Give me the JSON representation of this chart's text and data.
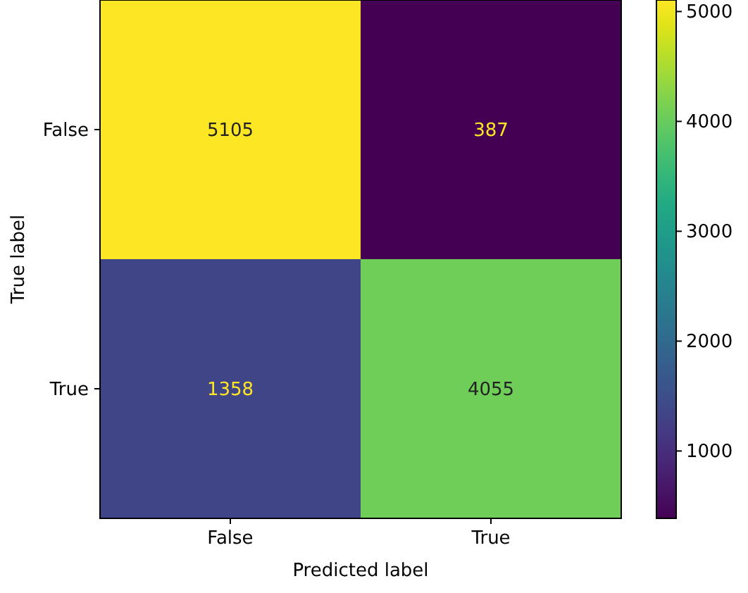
{
  "chart_data": {
    "type": "heatmap",
    "xlabel": "Predicted label",
    "ylabel": "True label",
    "categories": [
      "False",
      "True"
    ],
    "y_categories": [
      "False",
      "True"
    ],
    "cells": [
      [
        5105,
        387
      ],
      [
        1358,
        4055
      ]
    ],
    "data_labels": true,
    "clim": [
      387,
      5105
    ],
    "cticks": [
      1000,
      2000,
      3000,
      4000,
      5000
    ]
  }
}
